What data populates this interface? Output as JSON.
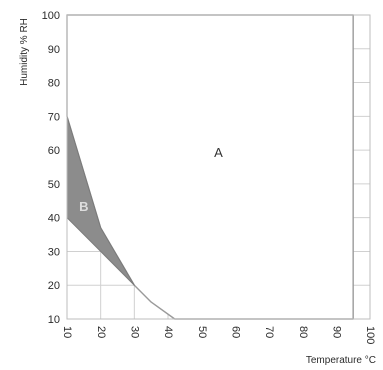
{
  "chart_data": {
    "type": "area",
    "title": "",
    "xlabel": "Temperature °C",
    "ylabel": "Humidity % RH",
    "xlim": [
      10,
      100
    ],
    "ylim": [
      10,
      100
    ],
    "xticks": [
      10,
      20,
      30,
      40,
      50,
      60,
      70,
      80,
      90,
      100
    ],
    "yticks": [
      10,
      20,
      30,
      40,
      50,
      60,
      70,
      80,
      90,
      100
    ],
    "grid": true,
    "regions": [
      {
        "label": "A",
        "fill": "#ffffff",
        "label_at": [
          55,
          58
        ],
        "boundary": [
          [
            10,
            100
          ],
          [
            10,
            70
          ],
          [
            20,
            37
          ],
          [
            30,
            20
          ],
          [
            35,
            15
          ],
          [
            42,
            10
          ],
          [
            95,
            10
          ],
          [
            95,
            100
          ]
        ]
      },
      {
        "label": "B",
        "fill": "#8c8c8c",
        "label_color": "#dddddd",
        "label_at": [
          15,
          42
        ],
        "boundary": [
          [
            10,
            70
          ],
          [
            20,
            37
          ],
          [
            30,
            20
          ],
          [
            20,
            30
          ],
          [
            10,
            40
          ]
        ]
      }
    ]
  }
}
